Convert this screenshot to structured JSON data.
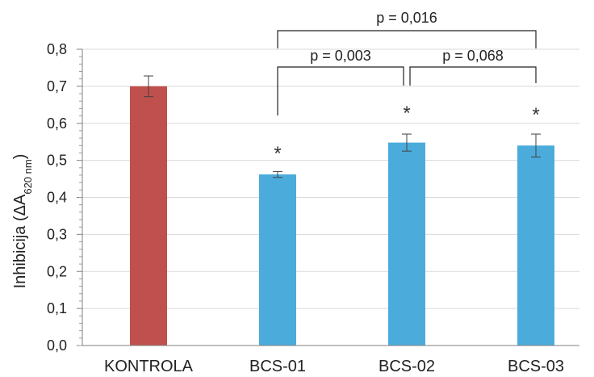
{
  "chart_data": {
    "type": "bar",
    "categories": [
      "KONTROLA",
      "BCS-01",
      "BCS-02",
      "BCS-03"
    ],
    "values": [
      0.7,
      0.462,
      0.548,
      0.54
    ],
    "errors": [
      0.028,
      0.008,
      0.023,
      0.031
    ],
    "colors": [
      "#c0504d",
      "#4bacdc",
      "#4bacdc",
      "#4bacdc"
    ],
    "ylabel_main": "Inhibicija (ΔA",
    "ylabel_sub": "620 nm",
    "ylabel_close": ")",
    "ylim": [
      0,
      0.8
    ],
    "yticks": [
      {
        "value": 0.0,
        "label": "0,0"
      },
      {
        "value": 0.1,
        "label": "0,1"
      },
      {
        "value": 0.2,
        "label": "0,2"
      },
      {
        "value": 0.3,
        "label": "0,3"
      },
      {
        "value": 0.4,
        "label": "0,4"
      },
      {
        "value": 0.5,
        "label": "0,5"
      },
      {
        "value": 0.6,
        "label": "0,6"
      },
      {
        "value": 0.7,
        "label": "0,7"
      },
      {
        "value": 0.8,
        "label": "0,8"
      }
    ],
    "grid": true,
    "significance_marks": [
      {
        "category": 1,
        "label": "*"
      },
      {
        "category": 2,
        "label": "*"
      },
      {
        "category": 3,
        "label": "*"
      }
    ],
    "comparisons": [
      {
        "from": 1,
        "to": 2,
        "label": "p = 0,003",
        "level": 0
      },
      {
        "from": 2,
        "to": 3,
        "label": "p = 0,068",
        "level": 0
      },
      {
        "from": 1,
        "to": 3,
        "label": "p = 0,016",
        "level": 1
      }
    ]
  }
}
